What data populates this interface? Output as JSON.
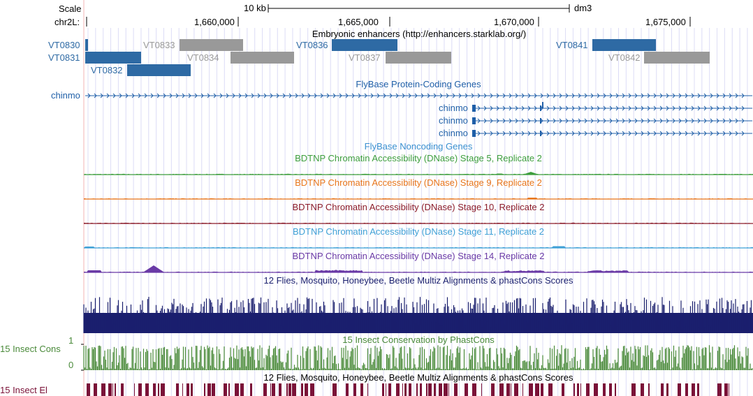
{
  "ruler": {
    "scale_label": "Scale",
    "chrom_label": "chr2L:",
    "scale_bar_label": "10 kb",
    "assembly": "dm3",
    "ticks": [
      "1,660,000",
      "1,665,000",
      "1,670,000",
      "1,675,000"
    ]
  },
  "tracks": {
    "enhancers": {
      "title": "Embryonic enhancers (http://enhancers.starklab.org/)",
      "items": [
        {
          "name": "VT0830",
          "color": "#2e6aa4",
          "label_color": "#2e6aa4"
        },
        {
          "name": "VT0831",
          "color": "#2e6aa4",
          "label_color": "#2e6aa4"
        },
        {
          "name": "VT0832",
          "color": "#2e6aa4",
          "label_color": "#2e6aa4"
        },
        {
          "name": "VT0833",
          "color": "#999999",
          "label_color": "#999999"
        },
        {
          "name": "VT0834",
          "color": "#999999",
          "label_color": "#999999"
        },
        {
          "name": "VT0836",
          "color": "#2e6aa4",
          "label_color": "#2e6aa4"
        },
        {
          "name": "VT0837",
          "color": "#999999",
          "label_color": "#999999"
        },
        {
          "name": "VT0841",
          "color": "#2e6aa4",
          "label_color": "#2e6aa4"
        },
        {
          "name": "VT0842",
          "color": "#999999",
          "label_color": "#999999"
        }
      ]
    },
    "protein_genes": {
      "title": "FlyBase Protein-Coding Genes",
      "color": "#1f5fa8",
      "gene_label": "chinmo",
      "transcripts": [
        "chinmo",
        "chinmo",
        "chinmo"
      ]
    },
    "noncoding": {
      "title": "FlyBase Noncoding Genes",
      "color": "#3a8fd0"
    },
    "dnase": [
      {
        "title": "BDTNP Chromatin Accessibility (DNase) Stage 5, Replicate 2",
        "color": "#3d9e3d"
      },
      {
        "title": "BDTNP Chromatin Accessibility (DNase) Stage 9, Replicate 2",
        "color": "#e8761c"
      },
      {
        "title": "BDTNP Chromatin Accessibility (DNase) Stage 10, Replicate 2",
        "color": "#8b1c2a"
      },
      {
        "title": "BDTNP Chromatin Accessibility (DNase) Stage 11, Replicate 2",
        "color": "#3fa0d6"
      },
      {
        "title": "BDTNP Chromatin Accessibility (DNase) Stage 14, Replicate 2",
        "color": "#6a3aa6"
      }
    ],
    "multiz": {
      "title": "12 Flies, Mosquito, Honeybee, Beetle Multiz Alignments & phastCons Scores",
      "color": "#1a1f6e"
    },
    "phastcons": {
      "title": "15 Insect Conservation by PhastCons",
      "side_label": "15 Insect Cons",
      "axis_max": "1",
      "axis_min": "0",
      "color": "#4a8a3a"
    },
    "elements": {
      "title": "12 Flies, Mosquito, Honeybee, Beetle Multiz Alignments & phastCons Scores",
      "side_label": "15 Insect El",
      "color": "#7a1238"
    }
  }
}
